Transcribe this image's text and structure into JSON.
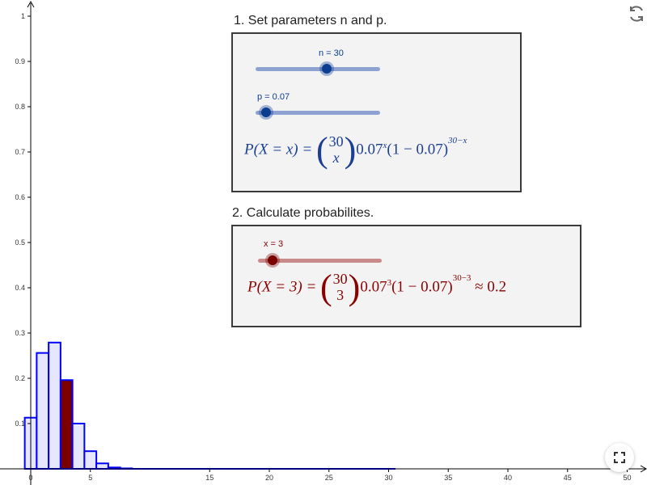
{
  "step1": {
    "title": "1. Set parameters n and p."
  },
  "step2": {
    "title": "2. Calculate probabilites."
  },
  "slider_n": {
    "label": "n = 30",
    "value": 30,
    "color": "#0b3d91"
  },
  "slider_p": {
    "label": "p = 0.07",
    "value": 0.07,
    "color": "#0b3d91"
  },
  "slider_x": {
    "label": "x = 3",
    "value": 3,
    "color": "#7a0000"
  },
  "formula_general": {
    "lhs": "P(X = x) = ",
    "binom_top": "30",
    "binom_bottom": "x",
    "base1": "0.07",
    "exp1": "x",
    "middle": "(1 − 0.07)",
    "exp2": "30−x"
  },
  "formula_specific": {
    "lhs": "P(X = 3) = ",
    "binom_top": "30",
    "binom_bottom": "3",
    "base1": "0.07",
    "exp1": "3",
    "middle": "(1 − 0.07)",
    "exp2": "30−3",
    "result": " ≈ 0.2"
  },
  "icons": {
    "refresh": "refresh-icon",
    "fullscreen": "fullscreen-icon"
  },
  "colors": {
    "bar_outline": "#0000ff",
    "bar_fill": "#e6e6ff",
    "highlight_fill": "#7a0000",
    "formula_blue": "#1c3f94",
    "formula_red": "#8b0000"
  },
  "chart_data": {
    "type": "bar",
    "x": [
      0,
      1,
      2,
      3,
      4,
      5,
      6,
      7,
      8,
      9,
      10,
      11,
      12,
      13,
      14,
      15,
      16,
      17,
      18,
      19,
      20,
      21,
      22,
      23,
      24,
      25,
      26,
      27,
      28,
      29,
      30
    ],
    "values": [
      0.113,
      0.256,
      0.279,
      0.196,
      0.1,
      0.039,
      0.012,
      0.003,
      0.001,
      0,
      0,
      0,
      0,
      0,
      0,
      0,
      0,
      0,
      0,
      0,
      0,
      0,
      0,
      0,
      0,
      0,
      0,
      0,
      0,
      0,
      0
    ],
    "highlight_x": 3,
    "xlim": [
      -2,
      51
    ],
    "ylim": [
      0,
      1.05
    ],
    "x_ticks": [
      "0",
      "5",
      "15",
      "20",
      "25",
      "30",
      "35",
      "40",
      "45",
      "50"
    ],
    "x_tick_values": [
      0,
      5,
      15,
      20,
      25,
      30,
      35,
      40,
      45,
      50
    ],
    "y_ticks": [
      "0.1",
      "0.2",
      "0.3",
      "0.4",
      "0.5",
      "0.6",
      "0.7",
      "0.8",
      "0.9",
      "1"
    ],
    "y_tick_values": [
      0.1,
      0.2,
      0.3,
      0.4,
      0.5,
      0.6,
      0.7,
      0.8,
      0.9,
      1
    ],
    "title": "",
    "xlabel": "",
    "ylabel": "",
    "grid": false
  }
}
